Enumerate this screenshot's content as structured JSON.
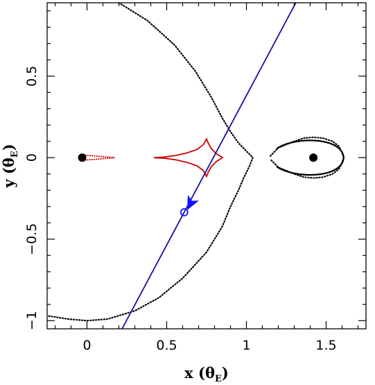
{
  "chart_data": {
    "type": "scatter",
    "title": "",
    "xlabel": {
      "main": "x (θ",
      "sub": "E",
      "close": ")"
    },
    "ylabel": {
      "main": "y (θ",
      "sub": "E",
      "close": ")"
    },
    "xlim": [
      -0.25,
      1.75
    ],
    "ylim": [
      -1.05,
      0.95
    ],
    "x_major_ticks": [
      0,
      0.5,
      1,
      1.5
    ],
    "x_tick_labels": [
      "0",
      "0.5",
      "1",
      "1.5"
    ],
    "y_major_ticks": [
      -1,
      -0.5,
      0,
      0.5
    ],
    "y_tick_labels": [
      "−1",
      "−0.5",
      "0",
      "0.5"
    ],
    "grid": false,
    "colors": {
      "critical": "#000000",
      "caustic": "#cc0000",
      "trajectory": "#1010a0",
      "source": "#1010ff"
    },
    "lenses": [
      {
        "x": -0.03,
        "y": 0.0
      },
      {
        "x": 1.42,
        "y": 0.0
      }
    ],
    "trajectory": {
      "point1": [
        0.22,
        -1.05
      ],
      "point2": [
        1.31,
        0.95
      ]
    },
    "source": {
      "x": 0.61,
      "y": -0.335
    },
    "arrow": {
      "x": 0.65,
      "y": -0.28,
      "direction_deg": 243
    },
    "critical_outer_left": [
      [
        0.2,
        0.95
      ],
      [
        0.38,
        0.84
      ],
      [
        0.55,
        0.69
      ],
      [
        0.68,
        0.53
      ],
      [
        0.78,
        0.37
      ],
      [
        0.85,
        0.24
      ],
      [
        0.9,
        0.16
      ],
      [
        0.95,
        0.09
      ],
      [
        1.0,
        0.04
      ],
      [
        1.04,
        0.0
      ],
      [
        1.02,
        -0.05
      ],
      [
        0.98,
        -0.13
      ],
      [
        0.95,
        -0.2
      ],
      [
        0.9,
        -0.3
      ],
      [
        0.85,
        -0.42
      ],
      [
        0.75,
        -0.58
      ],
      [
        0.6,
        -0.74
      ],
      [
        0.45,
        -0.86
      ],
      [
        0.3,
        -0.94
      ],
      [
        0.13,
        -0.99
      ],
      [
        0.0,
        -1.0
      ],
      [
        -0.12,
        -0.99
      ],
      [
        -0.25,
        -0.97
      ]
    ],
    "critical_right_loop": [
      [
        1.15,
        0.01
      ],
      [
        1.17,
        0.03
      ],
      [
        1.2,
        0.06
      ],
      [
        1.25,
        0.08
      ],
      [
        1.3,
        0.1
      ],
      [
        1.36,
        0.12
      ],
      [
        1.42,
        0.125
      ],
      [
        1.48,
        0.12
      ],
      [
        1.54,
        0.1
      ],
      [
        1.58,
        0.07
      ],
      [
        1.6,
        0.03
      ],
      [
        1.61,
        0.0
      ],
      [
        1.6,
        -0.03
      ],
      [
        1.58,
        -0.07
      ],
      [
        1.54,
        -0.1
      ],
      [
        1.48,
        -0.12
      ],
      [
        1.42,
        -0.125
      ],
      [
        1.36,
        -0.12
      ],
      [
        1.3,
        -0.1
      ],
      [
        1.25,
        -0.08
      ],
      [
        1.2,
        -0.06
      ],
      [
        1.17,
        -0.03
      ],
      [
        1.15,
        -0.01
      ]
    ],
    "caustic_left": [
      [
        -0.04,
        0.02
      ],
      [
        -0.02,
        0.015
      ],
      [
        0.03,
        0.012
      ],
      [
        0.1,
        0.006
      ],
      [
        0.17,
        0.001
      ],
      [
        0.17,
        -0.001
      ],
      [
        0.1,
        -0.006
      ],
      [
        0.03,
        -0.012
      ],
      [
        -0.02,
        -0.015
      ],
      [
        -0.04,
        -0.02
      ],
      [
        -0.045,
        0.0
      ],
      [
        -0.04,
        0.02
      ]
    ],
    "caustic_center": [
      [
        0.42,
        0.0
      ],
      [
        0.49,
        0.004
      ],
      [
        0.56,
        0.014
      ],
      [
        0.63,
        0.03
      ],
      [
        0.69,
        0.05
      ],
      [
        0.73,
        0.08
      ],
      [
        0.75,
        0.115
      ],
      [
        0.76,
        0.09
      ],
      [
        0.78,
        0.055
      ],
      [
        0.81,
        0.025
      ],
      [
        0.85,
        0.0
      ],
      [
        0.81,
        -0.025
      ],
      [
        0.78,
        -0.055
      ],
      [
        0.76,
        -0.09
      ],
      [
        0.75,
        -0.115
      ],
      [
        0.73,
        -0.08
      ],
      [
        0.69,
        -0.05
      ],
      [
        0.63,
        -0.03
      ],
      [
        0.56,
        -0.014
      ],
      [
        0.49,
        -0.004
      ],
      [
        0.42,
        0.0
      ]
    ]
  }
}
